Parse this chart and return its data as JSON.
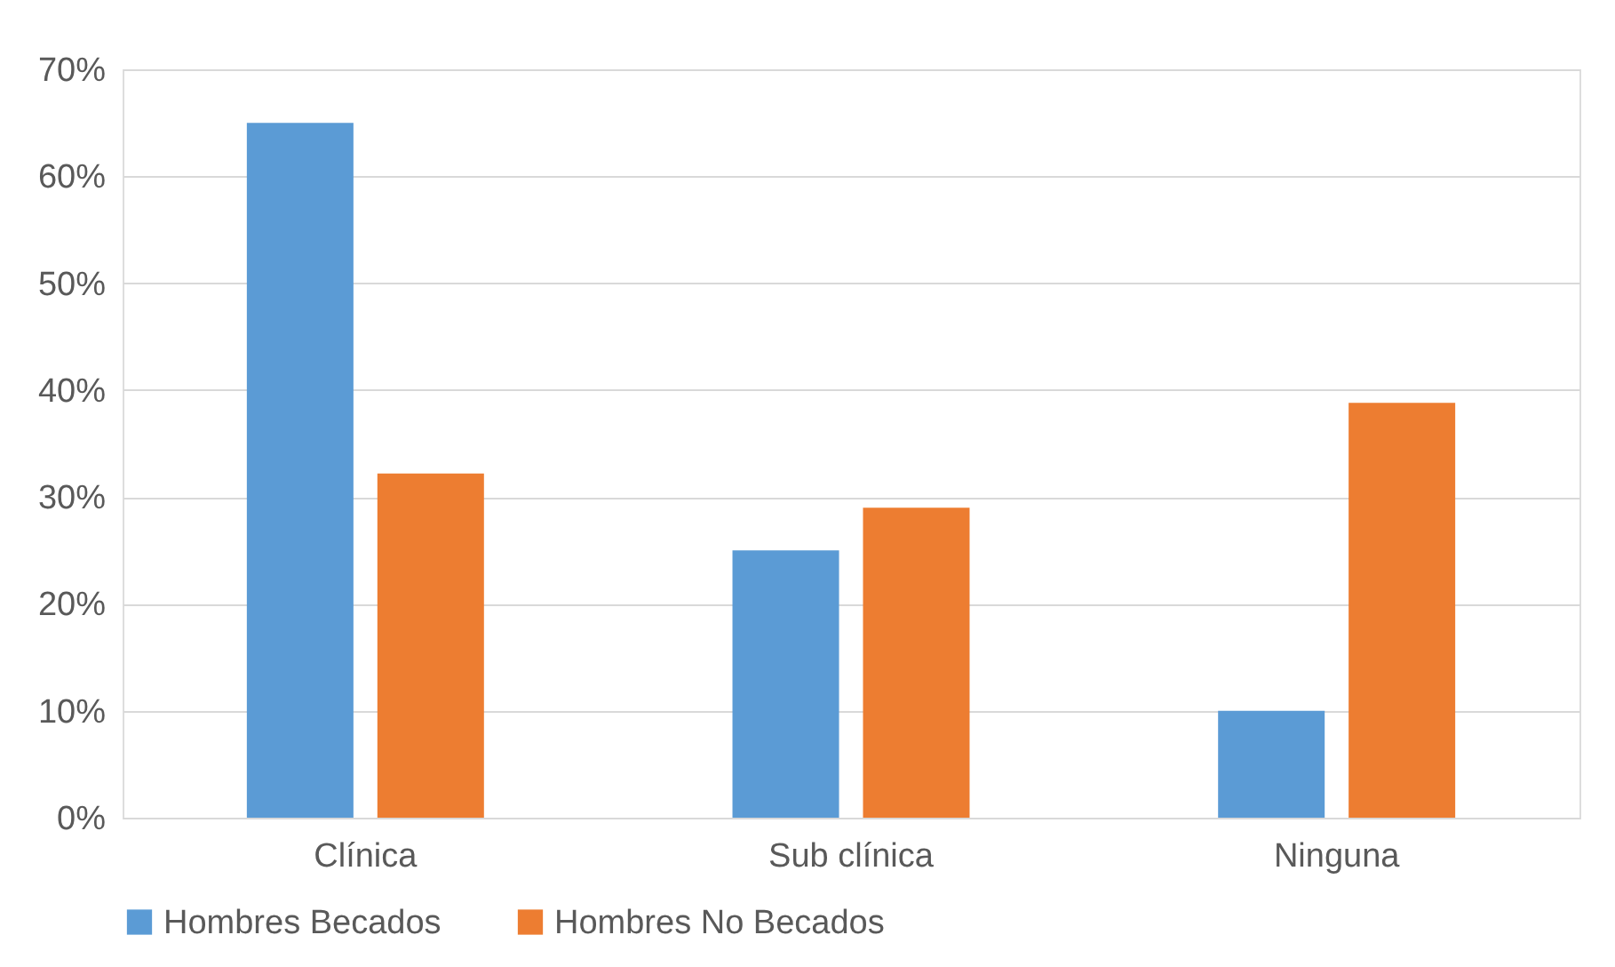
{
  "chart_data": {
    "type": "bar",
    "categories": [
      "Clínica",
      "Sub clínica",
      "Ninguna"
    ],
    "series": [
      {
        "name": "Hombres Becados",
        "color": "#5b9bd5",
        "values": [
          65,
          25,
          10
        ]
      },
      {
        "name": "Hombres No Becados",
        "color": "#ed7d31",
        "values": [
          32.2,
          29,
          38.8
        ]
      }
    ],
    "ylim": [
      0,
      70
    ],
    "yticks": [
      {
        "value": 0,
        "label": "0%"
      },
      {
        "value": 10,
        "label": "10%"
      },
      {
        "value": 20,
        "label": "20%"
      },
      {
        "value": 30,
        "label": "30%"
      },
      {
        "value": 40,
        "label": "40%"
      },
      {
        "value": 50,
        "label": "50%"
      },
      {
        "value": 60,
        "label": "60%"
      },
      {
        "value": 70,
        "label": "70%"
      }
    ],
    "grid": "y",
    "legend": "bottom"
  }
}
